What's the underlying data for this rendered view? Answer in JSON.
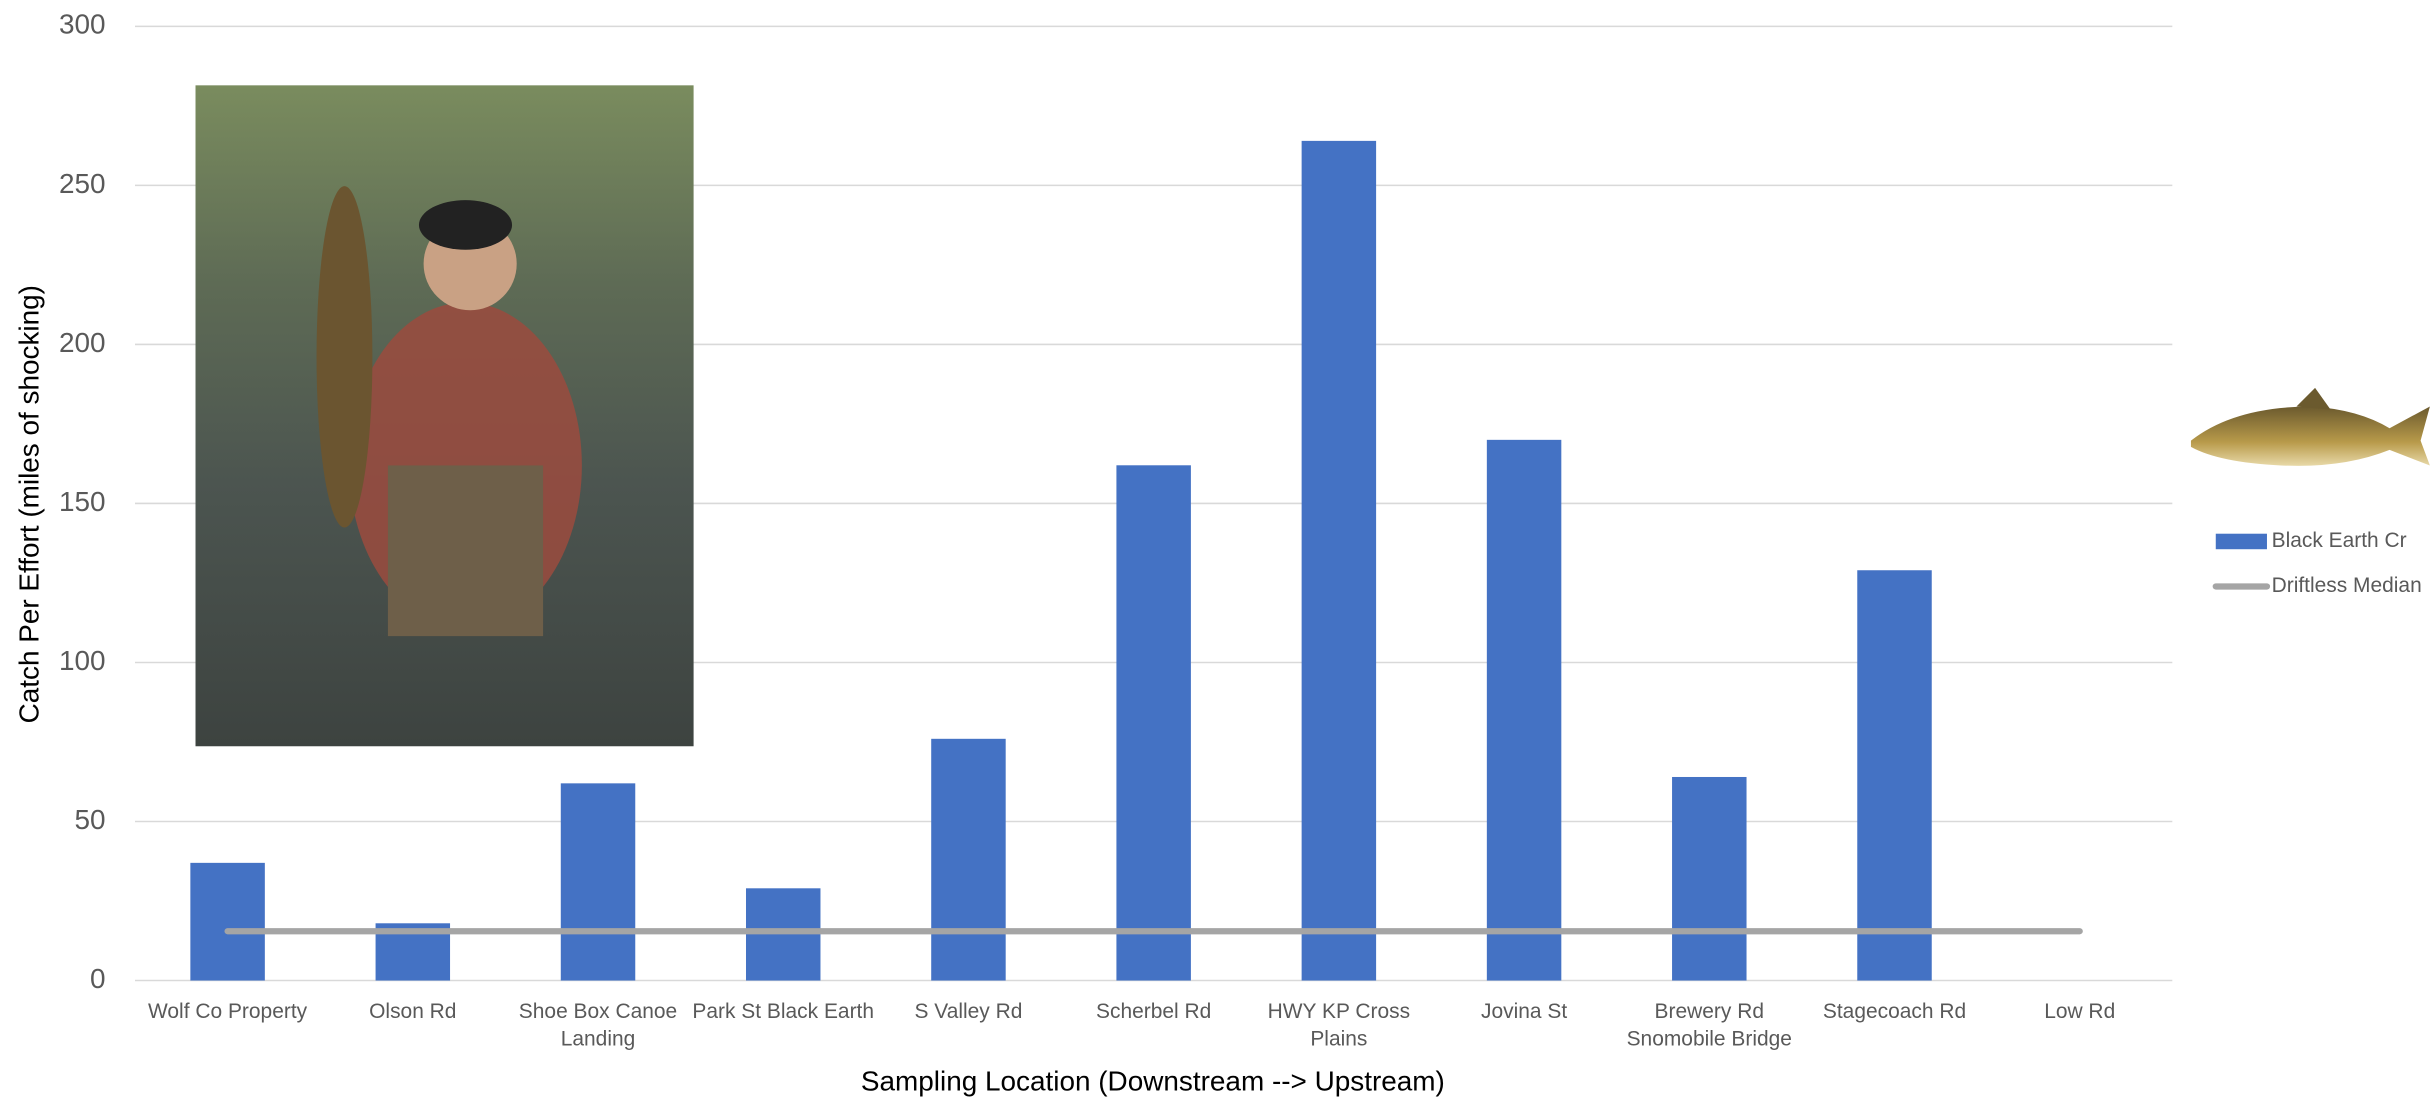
{
  "chart_data": {
    "type": "bar",
    "x_label": "Sampling Location (Downstream --> Upstream)",
    "y_label": "Catch Per Effort (miles of shocking)",
    "categories": [
      "Wolf Co Property",
      "Olson Rd",
      "Shoe Box Canoe Landing",
      "Park St Black Earth",
      "S Valley Rd",
      "Scherbel Rd",
      "HWY KP Cross Plains",
      "Jovina St",
      "Brewery Rd Snomobile Bridge",
      "Stagecoach Rd",
      "Low Rd"
    ],
    "series": [
      {
        "name": "Black Earth Cr",
        "type": "bar",
        "color": "#4472c4",
        "values": [
          37,
          18,
          62,
          29,
          76,
          162,
          264,
          170,
          64,
          129,
          null
        ]
      },
      {
        "name": "Driftless Median",
        "type": "line",
        "color": "#a5a5a5",
        "values": [
          15.5,
          15.5,
          15.5,
          15.5,
          15.5,
          15.5,
          15.5,
          15.5,
          15.5,
          15.5,
          15.5
        ]
      }
    ],
    "ylim": [
      0,
      300
    ],
    "yticks": [
      0,
      50,
      100,
      150,
      200,
      250,
      300
    ],
    "grid": true,
    "legend": "right"
  }
}
